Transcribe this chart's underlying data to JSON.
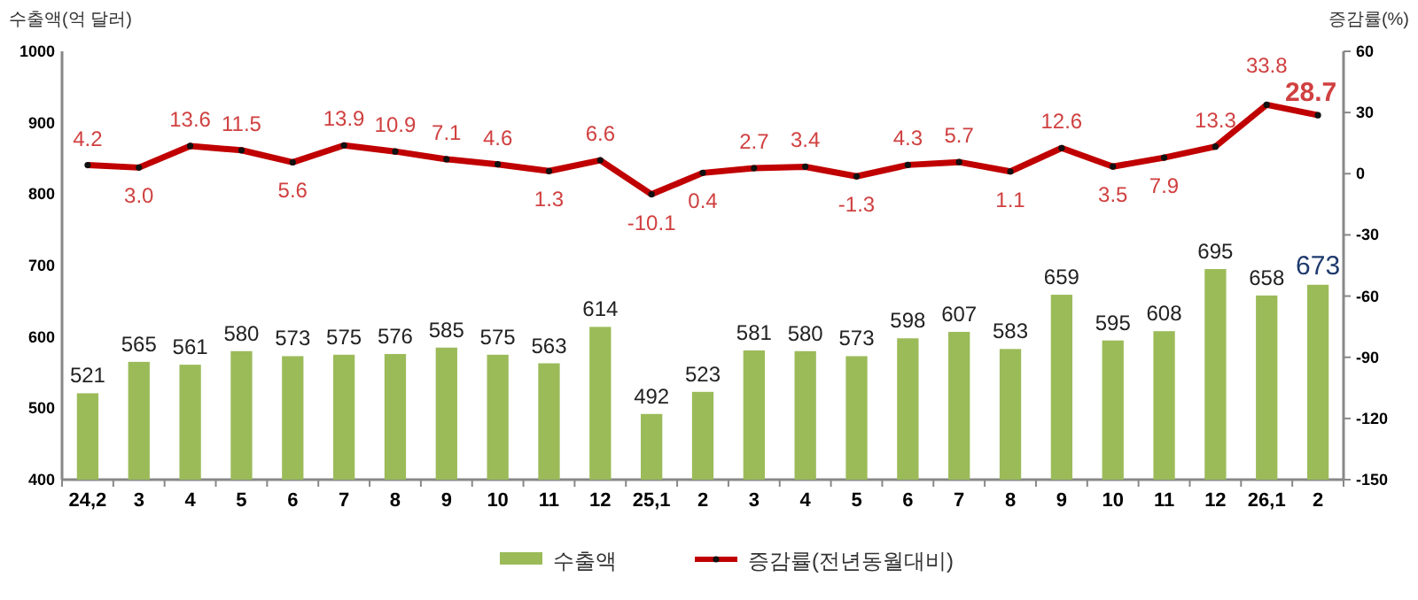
{
  "chart_data": {
    "type": "bar",
    "ylabel": "수출액(억 달러)",
    "y2label": "증감률(%)",
    "categories": [
      "24,2",
      "3",
      "4",
      "5",
      "6",
      "7",
      "8",
      "9",
      "10",
      "11",
      "12",
      "25,1",
      "2",
      "3",
      "4",
      "5",
      "6",
      "7",
      "8",
      "9",
      "10",
      "11",
      "12",
      "26,1",
      "2"
    ],
    "series": [
      {
        "name": "수출액",
        "color": "#9bbb59",
        "values": [
          521,
          565,
          561,
          580,
          573,
          575,
          576,
          585,
          575,
          563,
          614,
          492,
          523,
          581,
          580,
          573,
          598,
          607,
          583,
          659,
          595,
          608,
          695,
          658,
          673
        ]
      },
      {
        "name": "증감률(전년동월대비)",
        "type": "line",
        "axis": "y2",
        "color": "#c00000",
        "marker": "circle",
        "values": [
          4.2,
          3.0,
          13.6,
          11.5,
          5.6,
          13.9,
          10.9,
          7.1,
          4.6,
          1.3,
          6.6,
          -10.1,
          0.4,
          2.7,
          3.4,
          -1.3,
          4.3,
          5.7,
          1.1,
          12.6,
          3.5,
          7.9,
          13.3,
          33.8,
          28.7
        ],
        "value_labels": [
          "4.2",
          "3.0",
          "13.6",
          "11.5",
          "5.6",
          "13.9",
          "10.9",
          "7.1",
          "4.6",
          "1.3",
          "6.6",
          "-10.1",
          "0.4",
          "2.7",
          "3.4",
          "-1.3",
          "4.3",
          "5.7",
          "1.1",
          "12.6",
          "3.5",
          "7.9",
          "13.3",
          "33.8",
          "28.7"
        ]
      }
    ],
    "ylim": [
      400,
      1000
    ],
    "yticks": [
      400,
      500,
      600,
      700,
      800,
      900,
      1000
    ],
    "y2lim": [
      -150,
      60
    ],
    "y2ticks": [
      -150,
      -120,
      -90,
      -60,
      -30,
      0,
      30,
      60
    ],
    "data_labels": true,
    "legend": "bottom",
    "grid": false
  }
}
